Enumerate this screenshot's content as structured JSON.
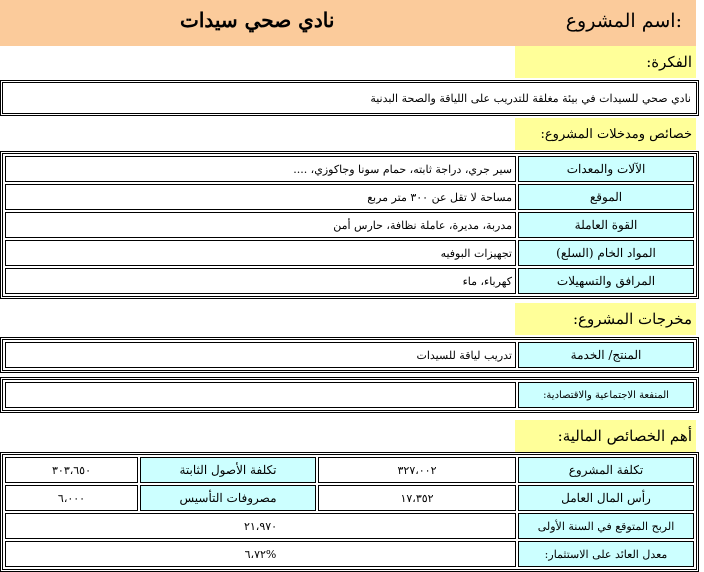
{
  "header": {
    "label": "اسم المشروع:",
    "title": "نادي صحي سيدات"
  },
  "idea": {
    "label": "الفكرة:",
    "text": "نادي صحي للسيدات في بيئة مغلقة للتدريب على اللياقة والصحة البدنية"
  },
  "inputs": {
    "label": "خصائص ومدخلات المشروع:",
    "rows": [
      {
        "label": "الآلات والمعدات",
        "value": "سير جري، دراجة ثابته، حمام سونا وجاكوزي، ...."
      },
      {
        "label": "الموقع",
        "value": "مساحة لا تقل عن ٣٠٠ متر مربع"
      },
      {
        "label": "القوة العاملة",
        "value": "مدربة، مديرة، عاملة نظافة، حارس أمن"
      },
      {
        "label": "المواد الخام (السلع)",
        "value": "تجهيزات البوفيه"
      },
      {
        "label": "المرافق والتسهيلات",
        "value": "كهرباء، ماء"
      }
    ]
  },
  "outputs": {
    "label": "مخرجات المشروع:",
    "product_label": "المنتج/ الخدمة",
    "product_value": "تدريب لياقة للسيدات",
    "benefit_label": "المنفعة الاجتماعية والاقتصادية:",
    "benefit_value": ""
  },
  "financial": {
    "label": "أهم الخصائص المالية:",
    "project_cost_label": "تكلفة المشروع",
    "project_cost": "٣٢٧،٠٠٢",
    "fixed_assets_label": "تكلفة الأصول الثابتة",
    "fixed_assets": "٣٠٣،٦٥٠",
    "working_capital_label": "رأس المال العامل",
    "working_capital": "١٧،٣٥٢",
    "setup_label": "مصروفات التأسيس",
    "setup": "٦،٠٠٠",
    "profit_label": "الربح المتوقع في السنة الأولى",
    "profit": "٢١،٩٧٠",
    "roi_label": "معدل العائد على الاستثمار:",
    "roi": "%٦،٧٢"
  }
}
